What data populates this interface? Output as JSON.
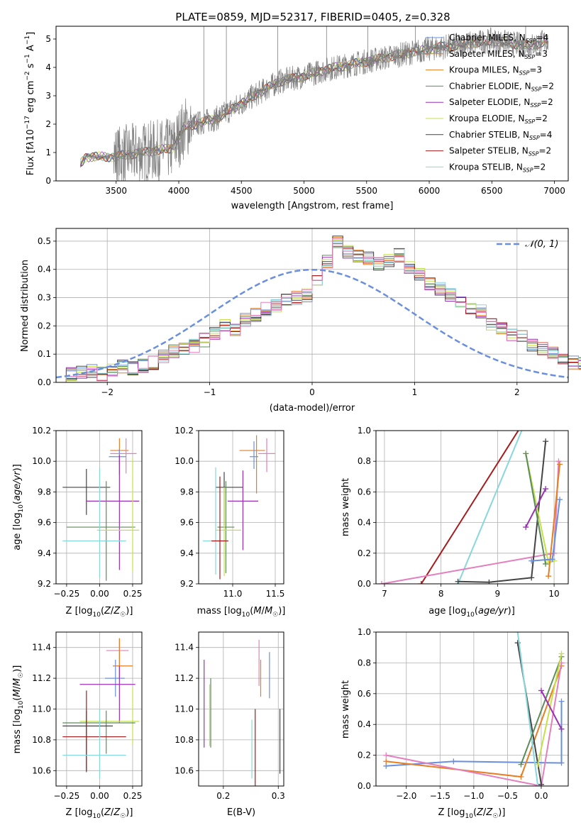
{
  "figure_title": "PLATE=0859, MJD=52317, FIBERID=0405, z=0.328",
  "colors": {
    "blue": "#6a8fdc",
    "orange": "#e67e22",
    "green": "#5b8c5a",
    "purple": "#9b30b5",
    "lime": "#c5e04a",
    "dark": "#444444",
    "red": "#a61b1b",
    "cyan": "#88d7dc",
    "pink": "#e37fbd",
    "grey": "#7f7f7f"
  },
  "chart_data": [
    {
      "id": "spectrum",
      "type": "line",
      "xlabel": "wavelength [Angstrom, rest frame]",
      "ylabel": "Flux [f_λ 10^-17 erg cm^-2 s^-1 A^-1]",
      "xlim": [
        3020,
        7110
      ],
      "ylim": [
        0,
        5.45
      ],
      "xticks": [
        3500,
        4000,
        4500,
        5000,
        5500,
        6000,
        6500,
        7000
      ],
      "yticks": [
        0,
        1,
        2,
        3,
        4,
        5
      ],
      "grid": false,
      "legend_position": "upper-right",
      "continuum_knots": [
        [
          3210,
          0
        ],
        [
          3215,
          0.6
        ],
        [
          3260,
          0.85
        ],
        [
          3480,
          0.85
        ],
        [
          3700,
          1.0
        ],
        [
          3950,
          1.15
        ],
        [
          4050,
          1.9
        ],
        [
          4300,
          2.2
        ],
        [
          4600,
          3.0
        ],
        [
          4800,
          3.5
        ],
        [
          5000,
          3.7
        ],
        [
          5200,
          3.95
        ],
        [
          5600,
          4.3
        ],
        [
          6000,
          4.65
        ],
        [
          6500,
          4.95
        ],
        [
          6800,
          4.75
        ],
        [
          6950,
          4.95
        ]
      ],
      "series": [
        {
          "name": "Chabrier MILES, N_SSP=4",
          "color": "blue"
        },
        {
          "name": "Salpeter MILES, N_SSP=3",
          "color": "orange"
        },
        {
          "name": "Kroupa MILES, N_SSP=3",
          "color": "orange"
        },
        {
          "name": "Chabrier ELODIE, N_SSP=2",
          "color": "green"
        },
        {
          "name": "Salpeter ELODIE, N_SSP=2",
          "color": "purple"
        },
        {
          "name": "Kroupa ELODIE, N_SSP=2",
          "color": "lime"
        },
        {
          "name": "Chabrier STELIB, N_SSP=4",
          "color": "dark"
        },
        {
          "name": "Salpeter STELIB, N_SSP=2",
          "color": "red"
        },
        {
          "name": "Kroupa STELIB, N_SSP=2",
          "color": "cyan"
        }
      ]
    },
    {
      "id": "residuals",
      "type": "step",
      "xlabel": "(data-model)/error",
      "ylabel": "Normed distribution",
      "xlim": [
        -2.5,
        2.5
      ],
      "ylim": [
        0,
        0.545
      ],
      "xticks": [
        -2,
        -1,
        0,
        1,
        2
      ],
      "yticks": [
        0.0,
        0.1,
        0.2,
        0.3,
        0.4,
        0.5
      ],
      "grid": true,
      "legend_position": "upper-right",
      "reference": {
        "name": "N(0,1)",
        "color": "blue"
      },
      "bin_width": 0.1,
      "bins_start": -2.5,
      "values": [
        0.02,
        0.03,
        0.035,
        0.04,
        0.03,
        0.04,
        0.055,
        0.05,
        0.06,
        0.07,
        0.09,
        0.11,
        0.12,
        0.13,
        0.15,
        0.17,
        0.2,
        0.19,
        0.22,
        0.24,
        0.26,
        0.27,
        0.29,
        0.3,
        0.31,
        0.36,
        0.43,
        0.5,
        0.46,
        0.45,
        0.44,
        0.42,
        0.43,
        0.45,
        0.41,
        0.38,
        0.35,
        0.33,
        0.31,
        0.29,
        0.26,
        0.25,
        0.21,
        0.19,
        0.17,
        0.16,
        0.13,
        0.12,
        0.1,
        0.08,
        0.07,
        0.07,
        0.06,
        0.05,
        0.05,
        0.04,
        0.03,
        0.03,
        0.02,
        0.02,
        0.02
      ]
    },
    {
      "id": "age_vs_Z",
      "type": "errorbar",
      "xlabel": "Z [log10(Z/Z☉)]",
      "ylabel": "age [log10(age/yr)]",
      "xlim": [
        -0.33,
        0.32
      ],
      "ylim": [
        9.2,
        10.2
      ],
      "xticks": [
        -0.25,
        0.0,
        0.25
      ],
      "xticklabels": [
        "−0.25",
        "0.00",
        "0.25"
      ],
      "yticks": [
        9.2,
        9.4,
        9.6,
        9.8,
        10.0,
        10.2
      ],
      "grid": true,
      "points": [
        {
          "x": 0.15,
          "y": 10.07,
          "xerr": [
            0.07,
            0.07
          ],
          "yerr": [
            0.1,
            0.08
          ],
          "color": "orange"
        },
        {
          "x": 0.2,
          "y": 10.05,
          "xerr": [
            0.12,
            0.08
          ],
          "yerr": [
            0.13,
            0.1
          ],
          "color": "pink"
        },
        {
          "x": 0.15,
          "y": 10.03,
          "xerr": [
            0.08,
            0.05
          ],
          "yerr": [
            0.12,
            0.05
          ],
          "color": "blue"
        },
        {
          "x": -0.1,
          "y": 9.83,
          "xerr": [
            0.18,
            0.18
          ],
          "yerr": [
            0.18,
            0.12
          ],
          "color": "dark"
        },
        {
          "x": 0.15,
          "y": 9.74,
          "xerr": [
            0.25,
            0.15
          ],
          "yerr": [
            0.45,
            0.3
          ],
          "color": "purple"
        },
        {
          "x": 0.05,
          "y": 9.57,
          "xerr": [
            0.3,
            0.22
          ],
          "yerr": [
            0.35,
            0.3
          ],
          "color": "green"
        },
        {
          "x": 0.25,
          "y": 9.55,
          "xerr": [
            0.27,
            0.05
          ],
          "yerr": [
            0.27,
            0.47
          ],
          "color": "lime"
        },
        {
          "x": 0.0,
          "y": 9.48,
          "xerr": [
            0.28,
            0.2
          ],
          "yerr": [
            0.24,
            0.48
          ],
          "color": "cyan"
        }
      ]
    },
    {
      "id": "age_vs_mass",
      "type": "errorbar",
      "xlabel": "mass [log10(M/M☉)]",
      "ylabel": "",
      "xlim": [
        10.6,
        11.6
      ],
      "ylim": [
        9.2,
        10.2
      ],
      "xticks": [
        11.0,
        11.5
      ],
      "xticklabels": [
        "11.0",
        "11.5"
      ],
      "yticks": [
        9.2,
        9.4,
        9.6,
        9.8,
        10.0,
        10.2
      ],
      "grid": true,
      "points": [
        {
          "x": 11.28,
          "y": 10.07,
          "xerr": [
            0.2,
            0.1
          ],
          "yerr": [
            0.28,
            0.1
          ],
          "color": "orange"
        },
        {
          "x": 11.4,
          "y": 10.05,
          "xerr": [
            0.1,
            0.1
          ],
          "yerr": [
            0.12,
            0.1
          ],
          "color": "pink"
        },
        {
          "x": 11.25,
          "y": 10.03,
          "xerr": [
            0.05,
            0.05
          ],
          "yerr": [
            0.08,
            0.1
          ],
          "color": "blue"
        },
        {
          "x": 10.9,
          "y": 9.83,
          "xerr": [
            0.1,
            0.22
          ],
          "yerr": [
            0.25,
            0.1
          ],
          "color": "dark"
        },
        {
          "x": 11.12,
          "y": 9.74,
          "xerr": [
            0.18,
            0.18
          ],
          "yerr": [
            0.32,
            0.2
          ],
          "color": "purple"
        },
        {
          "x": 10.92,
          "y": 9.57,
          "xerr": [
            0.1,
            0.1
          ],
          "yerr": [
            0.3,
            0.3
          ],
          "color": "green"
        },
        {
          "x": 10.9,
          "y": 9.55,
          "xerr": [
            0.1,
            0.2
          ],
          "yerr": [
            0.3,
            0.28
          ],
          "color": "lime"
        },
        {
          "x": 10.8,
          "y": 9.48,
          "xerr": [
            0.15,
            0.1
          ],
          "yerr": [
            0.22,
            0.48
          ],
          "color": "cyan"
        },
        {
          "x": 10.85,
          "y": 9.48,
          "xerr": [
            0.1,
            0.1
          ],
          "yerr": [
            0.25,
            0.42
          ],
          "color": "red"
        }
      ]
    },
    {
      "id": "weight_vs_age",
      "type": "line",
      "xlabel": "age [log10(age/yr)]",
      "ylabel": "mass weight",
      "xlim": [
        6.85,
        10.25
      ],
      "ylim": [
        0,
        1
      ],
      "xticks": [
        7,
        8,
        9,
        10
      ],
      "yticks": [
        0.0,
        0.2,
        0.4,
        0.6,
        0.8,
        1.0
      ],
      "grid": true,
      "series": [
        {
          "color": "red",
          "points": [
            [
              7.65,
              0.0
            ],
            [
              9.4,
              1.02
            ]
          ]
        },
        {
          "color": "cyan",
          "points": [
            [
              8.3,
              0.0
            ],
            [
              9.45,
              1.02
            ]
          ]
        },
        {
          "color": "pink",
          "points": [
            [
              6.95,
              0.0
            ],
            [
              10.0,
              0.2
            ],
            [
              10.08,
              0.8
            ]
          ]
        },
        {
          "color": "dark",
          "points": [
            [
              8.3,
              0.015
            ],
            [
              8.85,
              0.01
            ],
            [
              9.6,
              0.04
            ],
            [
              9.85,
              0.93
            ]
          ]
        },
        {
          "color": "lime",
          "points": [
            [
              9.5,
              0.85
            ],
            [
              9.9,
              0.14
            ],
            [
              10.0,
              0.15
            ]
          ]
        },
        {
          "color": "green",
          "points": [
            [
              9.5,
              0.85
            ],
            [
              9.85,
              0.13
            ]
          ]
        },
        {
          "color": "purple",
          "points": [
            [
              9.5,
              0.37
            ],
            [
              9.85,
              0.62
            ]
          ]
        },
        {
          "color": "orange",
          "points": [
            [
              9.9,
              0.05
            ],
            [
              10.1,
              0.78
            ]
          ]
        },
        {
          "color": "blue",
          "points": [
            [
              9.6,
              0.15
            ],
            [
              9.97,
              0.16
            ],
            [
              10.1,
              0.55
            ]
          ]
        }
      ]
    },
    {
      "id": "mass_vs_Z",
      "type": "errorbar",
      "xlabel": "Z [log10(Z/Z☉)]",
      "ylabel": "mass [log10(M/M☉)]",
      "xlim": [
        -0.33,
        0.32
      ],
      "ylim": [
        10.5,
        11.5
      ],
      "xticks": [
        -0.25,
        0.0,
        0.25
      ],
      "xticklabels": [
        "−0.25",
        "0.00",
        "0.25"
      ],
      "yticks": [
        10.6,
        10.8,
        11.0,
        11.2,
        11.4
      ],
      "grid": true,
      "points": [
        {
          "x": 0.15,
          "y": 11.38,
          "xerr": [
            0.1,
            0.07
          ],
          "yerr": [
            0.1,
            0.08
          ],
          "color": "pink"
        },
        {
          "x": 0.15,
          "y": 11.28,
          "xerr": [
            0.05,
            0.1
          ],
          "yerr": [
            0.08,
            0.18
          ],
          "color": "orange"
        },
        {
          "x": 0.12,
          "y": 11.2,
          "xerr": [
            0.08,
            0.07
          ],
          "yerr": [
            0.12,
            0.12
          ],
          "color": "blue"
        },
        {
          "x": 0.15,
          "y": 11.16,
          "xerr": [
            0.3,
            0.12
          ],
          "yerr": [
            0.25,
            0.12
          ],
          "color": "purple"
        },
        {
          "x": 0.25,
          "y": 10.92,
          "xerr": [
            0.4,
            0.05
          ],
          "yerr": [
            0.15,
            0.22
          ],
          "color": "lime"
        },
        {
          "x": 0.05,
          "y": 10.91,
          "xerr": [
            0.33,
            0.22
          ],
          "yerr": [
            0.2,
            0.08
          ],
          "color": "green"
        },
        {
          "x": -0.1,
          "y": 10.89,
          "xerr": [
            0.18,
            0.2
          ],
          "yerr": [
            0.3,
            0.1
          ],
          "color": "dark"
        },
        {
          "x": -0.1,
          "y": 10.82,
          "xerr": [
            0.18,
            0.3
          ],
          "yerr": [
            0.22,
            0.3
          ],
          "color": "red"
        },
        {
          "x": 0.0,
          "y": 10.7,
          "xerr": [
            0.28,
            0.2
          ],
          "yerr": [
            0.15,
            0.3
          ],
          "color": "cyan"
        }
      ]
    },
    {
      "id": "mass_vs_ebv",
      "type": "errorbar",
      "xlabel": "E(B-V)",
      "ylabel": "",
      "xlim": [
        0.155,
        0.31
      ],
      "ylim": [
        10.5,
        11.5
      ],
      "xticks": [
        0.2,
        0.3
      ],
      "xticklabels": [
        "0.2",
        "0.3"
      ],
      "yticks": [
        10.6,
        10.8,
        11.0,
        11.2,
        11.4
      ],
      "grid": true,
      "points": [
        {
          "x": 0.265,
          "y": 11.3,
          "xerr": [
            0,
            0
          ],
          "yerr": [
            0.15,
            0.15
          ],
          "color": "pink"
        },
        {
          "x": 0.268,
          "y": 11.2,
          "xerr": [
            0,
            0
          ],
          "yerr": [
            0.12,
            0.12
          ],
          "color": "orange"
        },
        {
          "x": 0.284,
          "y": 11.22,
          "xerr": [
            0,
            0
          ],
          "yerr": [
            0.15,
            0.15
          ],
          "color": "blue"
        },
        {
          "x": 0.165,
          "y": 11.1,
          "xerr": [
            0,
            0
          ],
          "yerr": [
            0.35,
            0.22
          ],
          "color": "purple"
        },
        {
          "x": 0.177,
          "y": 11.0,
          "xerr": [
            0,
            0
          ],
          "yerr": [
            0.25,
            0.2
          ],
          "color": "green"
        },
        {
          "x": 0.175,
          "y": 10.96,
          "xerr": [
            0,
            0
          ],
          "yerr": [
            0.2,
            0.2
          ],
          "color": "lime"
        },
        {
          "x": 0.258,
          "y": 10.8,
          "xerr": [
            0,
            0
          ],
          "yerr": [
            0.3,
            0.2
          ],
          "color": "red"
        },
        {
          "x": 0.252,
          "y": 10.78,
          "xerr": [
            0,
            0
          ],
          "yerr": [
            0.23,
            0.15
          ],
          "color": "cyan"
        },
        {
          "x": 0.303,
          "y": 10.78,
          "xerr": [
            0,
            0
          ],
          "yerr": [
            0.2,
            0.22
          ],
          "color": "dark"
        }
      ]
    },
    {
      "id": "weight_vs_Z",
      "type": "line",
      "xlabel": "Z [log10(Z/Z☉)]",
      "ylabel": "mass weight",
      "xlim": [
        -2.45,
        0.4
      ],
      "ylim": [
        0,
        1
      ],
      "xticks": [
        -2.0,
        -1.5,
        -1.0,
        -0.5,
        0.0
      ],
      "xticklabels": [
        "−2.0",
        "−1.5",
        "−1.0",
        "−0.5",
        "0.0"
      ],
      "yticks": [
        0.0,
        0.2,
        0.4,
        0.6,
        0.8,
        1.0
      ],
      "grid": true,
      "series": [
        {
          "color": "blue",
          "points": [
            [
              -2.3,
              0.13
            ],
            [
              -1.3,
              0.16
            ],
            [
              0.3,
              0.15
            ],
            [
              0.3,
              0.55
            ]
          ]
        },
        {
          "color": "orange",
          "points": [
            [
              -2.3,
              0.16
            ],
            [
              -0.3,
              0.06
            ],
            [
              0.3,
              0.78
            ]
          ]
        },
        {
          "color": "pink",
          "points": [
            [
              -2.3,
              0.2
            ],
            [
              0.0,
              0.0
            ],
            [
              0.3,
              0.8
            ]
          ]
        },
        {
          "color": "dark",
          "points": [
            [
              -0.35,
              0.93
            ],
            [
              0.0,
              0.01
            ]
          ]
        },
        {
          "color": "cyan",
          "points": [
            [
              -0.35,
              1.0
            ],
            [
              -0.05,
              0.0
            ]
          ]
        },
        {
          "color": "green",
          "points": [
            [
              -0.3,
              0.14
            ],
            [
              0.3,
              0.84
            ]
          ]
        },
        {
          "color": "lime",
          "points": [
            [
              -0.05,
              0.14
            ],
            [
              0.3,
              0.86
            ]
          ]
        },
        {
          "color": "purple",
          "points": [
            [
              0.0,
              0.62
            ],
            [
              0.3,
              0.37
            ]
          ]
        }
      ]
    }
  ]
}
